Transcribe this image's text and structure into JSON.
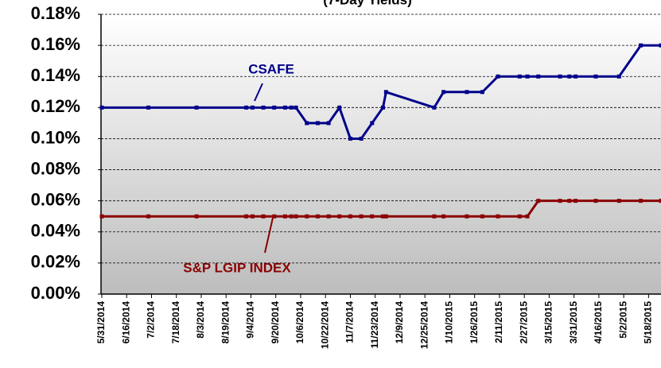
{
  "chart_data": {
    "type": "line",
    "title": "(7-Day Yields)",
    "x": [
      "5/31/2014",
      "6/30/2014",
      "7/31/2014",
      "9/1/2014",
      "9/5/2014",
      "9/12/2014",
      "9/19/2014",
      "9/26/2014",
      "9/30/2014",
      "10/3/2014",
      "10/10/2014",
      "10/17/2014",
      "10/24/2014",
      "10/31/2014",
      "11/7/2014",
      "11/14/2014",
      "11/21/2014",
      "11/28/2014",
      "11/30/2014",
      "12/31/2014",
      "1/6/2015",
      "1/21/2015",
      "1/31/2015",
      "2/10/2015",
      "2/24/2015",
      "3/1/2015",
      "3/8/2015",
      "3/22/2015",
      "3/28/2015",
      "4/1/2015",
      "4/14/2015",
      "4/29/2015",
      "5/13/2015",
      "5/26/2015"
    ],
    "series": [
      {
        "name": "CSAFE",
        "color": "#00008b",
        "values": [
          0.12,
          0.12,
          0.12,
          0.12,
          0.12,
          0.12,
          0.12,
          0.12,
          0.12,
          0.12,
          0.11,
          0.11,
          0.11,
          0.12,
          0.1,
          0.1,
          0.11,
          0.12,
          0.13,
          0.12,
          0.13,
          0.13,
          0.13,
          0.14,
          0.14,
          0.14,
          0.14,
          0.14,
          0.14,
          0.14,
          0.14,
          0.14,
          0.16,
          0.16
        ]
      },
      {
        "name": "S&P LGIP INDEX",
        "color": "#8b0000",
        "values": [
          0.05,
          0.05,
          0.05,
          0.05,
          0.05,
          0.05,
          0.05,
          0.05,
          0.05,
          0.05,
          0.05,
          0.05,
          0.05,
          0.05,
          0.05,
          0.05,
          0.05,
          0.05,
          0.05,
          0.05,
          0.05,
          0.05,
          0.05,
          0.05,
          0.05,
          0.05,
          0.06,
          0.06,
          0.06,
          0.06,
          0.06,
          0.06,
          0.06,
          0.06
        ]
      }
    ],
    "xlim": [
      "5/31/2014",
      "5/26/2015"
    ],
    "xticks": [
      "5/31/2014",
      "6/16/2014",
      "7/2/2014",
      "7/18/2014",
      "8/3/2014",
      "8/19/2014",
      "9/4/2014",
      "9/20/2014",
      "10/6/2014",
      "10/22/2014",
      "11/7/2014",
      "11/23/2014",
      "12/9/2014",
      "12/25/2014",
      "1/10/2015",
      "1/26/2015",
      "2/11/2015",
      "2/27/2015",
      "3/15/2015",
      "3/31/2015",
      "4/16/2015",
      "5/2/2015",
      "5/18/2015"
    ],
    "ylim": [
      0,
      0.18
    ],
    "yticks": [
      {
        "value": 0,
        "label": "0.00%"
      },
      {
        "value": 0.02,
        "label": "0.02%"
      },
      {
        "value": 0.04,
        "label": "0.04%"
      },
      {
        "value": 0.06,
        "label": "0.06%"
      },
      {
        "value": 0.08,
        "label": "0.08%"
      },
      {
        "value": 0.1,
        "label": "0.10%"
      },
      {
        "value": 0.12,
        "label": "0.12%"
      },
      {
        "value": 0.14,
        "label": "0.14%"
      },
      {
        "value": 0.16,
        "label": "0.16%"
      },
      {
        "value": 0.18,
        "label": "0.18%"
      }
    ],
    "grid": true
  }
}
